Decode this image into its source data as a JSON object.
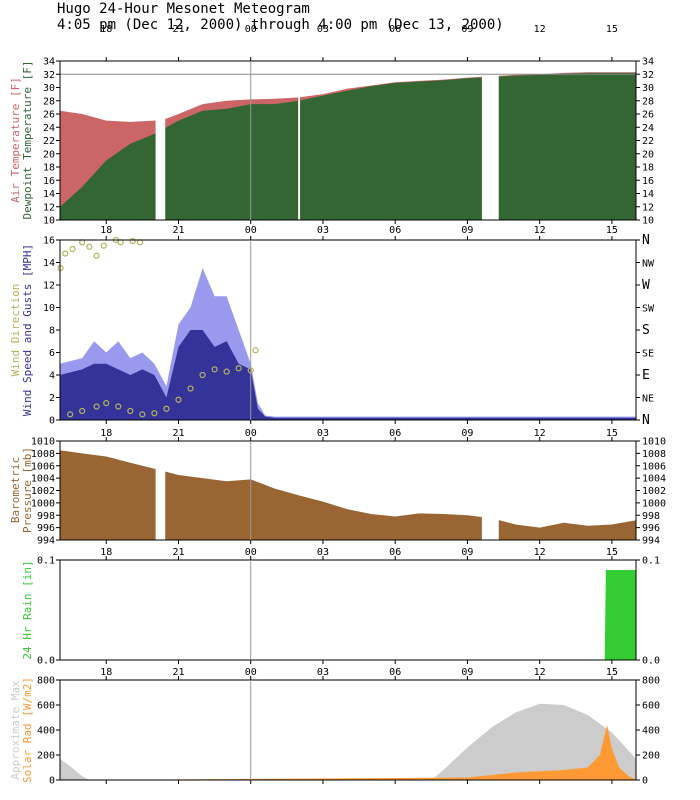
{
  "title_line1": "Hugo 24-Hour Mesonet Meteogram",
  "title_line2": "4:05 pm (Dec 12, 2000) through 4:00 pm (Dec 13, 2000)",
  "time_ticks": [
    "18",
    "21",
    "00",
    "03",
    "06",
    "09",
    "12",
    "15"
  ],
  "colors": {
    "air_temp": "#cc6666",
    "dewpoint": "#336633",
    "wind_speed": "#333399",
    "wind_gust": "#9999ee",
    "wind_dir": "#b5b35a",
    "pressure": "#996633",
    "rain": "#33cc33",
    "solar": "#ff9933",
    "solar_max": "#cccccc"
  },
  "chart_data": [
    {
      "type": "area",
      "name": "temperature",
      "ylabels": [
        {
          "text": "Air Temperature [F]",
          "color": "#cc6666"
        },
        {
          "text": "Dewpoint Temperature [F]",
          "color": "#336633"
        }
      ],
      "ylim": [
        10,
        34
      ],
      "yticks": [
        "10",
        "12",
        "14",
        "16",
        "18",
        "20",
        "22",
        "24",
        "26",
        "28",
        "30",
        "32",
        "34"
      ],
      "x_hours": [
        16.08,
        17,
        18,
        19,
        20,
        20.5,
        21,
        22,
        23,
        24,
        25,
        26,
        27,
        28,
        29,
        30,
        31,
        32,
        33,
        34,
        35,
        36,
        37,
        38,
        39,
        40
      ],
      "air_temp": [
        26.5,
        26,
        25,
        24.8,
        25,
        25.3,
        26,
        27.5,
        28,
        28.2,
        28.3,
        28.5,
        29,
        29.8,
        30.3,
        30.8,
        31,
        31.2,
        31.5,
        31.7,
        31.9,
        32,
        32.2,
        32.3,
        32.3,
        32.3
      ],
      "dewpoint": [
        12,
        15,
        19,
        21.5,
        23,
        24,
        25,
        26.5,
        26.8,
        27.5,
        27.5,
        28,
        28.8,
        29.5,
        30.2,
        30.7,
        30.9,
        31.1,
        31.4,
        31.6,
        31.8,
        31.9,
        32.1,
        32.2,
        32.2,
        32.2
      ],
      "gaps": [
        [
          20.05,
          20.45
        ],
        [
          25.97,
          26.05
        ],
        [
          33.6,
          34.3
        ]
      ]
    },
    {
      "type": "bar",
      "name": "wind",
      "ylabels": [
        {
          "text": "Wind Direction",
          "color": "#b5b35a"
        },
        {
          "text": "Wind Speed and Gusts [MPH]",
          "color": "#333399"
        }
      ],
      "ylim": [
        0,
        16
      ],
      "yticks": [
        "0",
        "2",
        "4",
        "6",
        "8",
        "10",
        "12",
        "14",
        "16"
      ],
      "dir_ticks": [
        "N",
        "NE",
        "E",
        "SE",
        "S",
        "SW",
        "W",
        "NW",
        "N"
      ],
      "x_hours": [
        16.08,
        17,
        17.5,
        18,
        18.5,
        19,
        19.5,
        20,
        20.5,
        21,
        21.5,
        22,
        22.5,
        23,
        23.5,
        24,
        24.3,
        24.6,
        25,
        28,
        32,
        36,
        40
      ],
      "speed": [
        4,
        4.5,
        5,
        5,
        4.5,
        4,
        4.5,
        4,
        2,
        6.5,
        8,
        8,
        6.5,
        7,
        5,
        4.5,
        1,
        0.3,
        0.2,
        0.2,
        0.2,
        0.2,
        0.2
      ],
      "gust": [
        5,
        5.5,
        7,
        6,
        7,
        5.5,
        6,
        5,
        3,
        8.5,
        10,
        13.5,
        11,
        11,
        8,
        5,
        1.5,
        0.4,
        0.3,
        0.3,
        0.3,
        0.3,
        0.3
      ],
      "direction_points": [
        [
          16.1,
          13.5
        ],
        [
          16.3,
          14.8
        ],
        [
          16.6,
          15.2
        ],
        [
          17,
          15.8
        ],
        [
          17.3,
          15.4
        ],
        [
          17.6,
          14.6
        ],
        [
          17.9,
          15.5
        ],
        [
          18.4,
          16
        ],
        [
          18.6,
          15.8
        ],
        [
          19.1,
          15.9
        ],
        [
          19.4,
          15.8
        ],
        [
          16.5,
          0.5
        ],
        [
          17,
          0.8
        ],
        [
          17.6,
          1.2
        ],
        [
          18,
          1.5
        ],
        [
          18.5,
          1.2
        ],
        [
          19,
          0.8
        ],
        [
          19.5,
          0.5
        ],
        [
          20,
          0.6
        ],
        [
          20.5,
          1
        ],
        [
          21,
          1.8
        ],
        [
          21.5,
          2.8
        ],
        [
          22,
          4
        ],
        [
          22.5,
          4.5
        ],
        [
          23,
          4.3
        ],
        [
          23.5,
          4.6
        ],
        [
          24,
          4.4
        ],
        [
          24.2,
          6.2
        ]
      ]
    },
    {
      "type": "area",
      "name": "pressure",
      "ylabels": [
        {
          "text": "Barometric",
          "color": "#996633"
        },
        {
          "text": "Pressure [mb]",
          "color": "#996633"
        }
      ],
      "ylim": [
        994,
        1010
      ],
      "yticks": [
        "994",
        "996",
        "998",
        "1000",
        "1002",
        "1004",
        "1006",
        "1008",
        "1010"
      ],
      "x_hours": [
        16.08,
        17,
        18,
        19,
        20,
        21,
        22,
        23,
        24,
        25,
        26,
        27,
        28,
        29,
        30,
        31,
        32,
        33,
        34,
        35,
        36,
        37,
        38,
        39,
        40
      ],
      "values": [
        1008.5,
        1008,
        1007.5,
        1006.5,
        1005.5,
        1004.5,
        1004,
        1003.5,
        1003.8,
        1002.3,
        1001.2,
        1000.2,
        999,
        998.2,
        997.8,
        998.3,
        998.2,
        998,
        997.5,
        996.5,
        996,
        996.8,
        996.3,
        996.5,
        997.2
      ],
      "gaps": [
        [
          20.05,
          20.45
        ],
        [
          33.6,
          34.3
        ]
      ]
    },
    {
      "type": "area",
      "name": "rain",
      "ylabels": [
        {
          "text": "24 Hr Rain [in]",
          "color": "#33cc33"
        }
      ],
      "ylim": [
        0,
        0.1
      ],
      "yticks": [
        "0.0",
        "0.1"
      ],
      "x_hours": [
        16.08,
        38.7,
        38.75,
        40
      ],
      "values": [
        0,
        0,
        0.09,
        0.09
      ]
    },
    {
      "type": "area",
      "name": "solar",
      "ylabels": [
        {
          "text": "Approximate Max",
          "color": "#cccccc"
        },
        {
          "text": "Solar Rad [W/m2]",
          "color": "#ff9933"
        }
      ],
      "ylim": [
        0,
        800
      ],
      "yticks": [
        "0",
        "200",
        "400",
        "600",
        "800"
      ],
      "max_x": [
        16.08,
        16.5,
        17,
        17.3,
        31.5,
        32,
        33,
        34,
        35,
        36,
        37,
        38,
        39,
        40
      ],
      "max_values": [
        170,
        110,
        30,
        0,
        0,
        80,
        260,
        420,
        540,
        610,
        600,
        520,
        380,
        170
      ],
      "x_hours": [
        16.08,
        17,
        17.3,
        33,
        34,
        35,
        36,
        37,
        38,
        38.5,
        38.8,
        39,
        39.3,
        39.7,
        40
      ],
      "values": [
        0,
        0,
        0,
        20,
        40,
        60,
        70,
        80,
        100,
        200,
        440,
        250,
        100,
        30,
        0
      ]
    }
  ]
}
